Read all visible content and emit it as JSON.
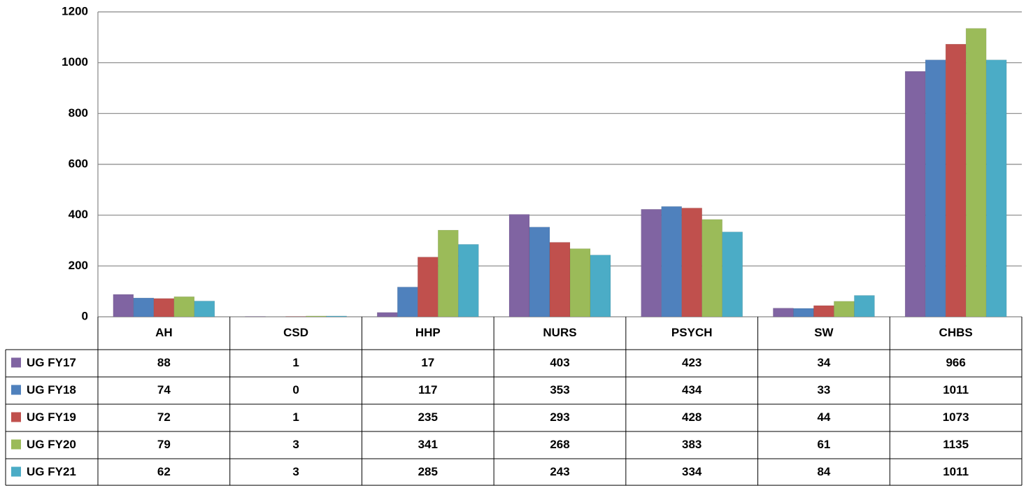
{
  "chart_data": {
    "type": "bar",
    "categories": [
      "AH",
      "CSD",
      "HHP",
      "NURS",
      "PSYCH",
      "SW",
      "CHBS"
    ],
    "series": [
      {
        "name": "UG FY17",
        "color": "#8064a2",
        "values": [
          88,
          1,
          17,
          403,
          423,
          34,
          966
        ]
      },
      {
        "name": "UG FY18",
        "color": "#4f81bd",
        "values": [
          74,
          0,
          117,
          353,
          434,
          33,
          1011
        ]
      },
      {
        "name": "UG FY19",
        "color": "#c0504d",
        "values": [
          72,
          1,
          235,
          293,
          428,
          44,
          1073
        ]
      },
      {
        "name": "UG FY20",
        "color": "#9bbb59",
        "values": [
          79,
          3,
          341,
          268,
          383,
          61,
          1135
        ]
      },
      {
        "name": "UG FY21",
        "color": "#4bacc6",
        "values": [
          62,
          3,
          285,
          243,
          334,
          84,
          1011
        ]
      }
    ],
    "ylim": [
      0,
      1200
    ],
    "yticks": [
      0,
      200,
      400,
      600,
      800,
      1000,
      1200
    ],
    "grid": true,
    "data_table": true
  }
}
